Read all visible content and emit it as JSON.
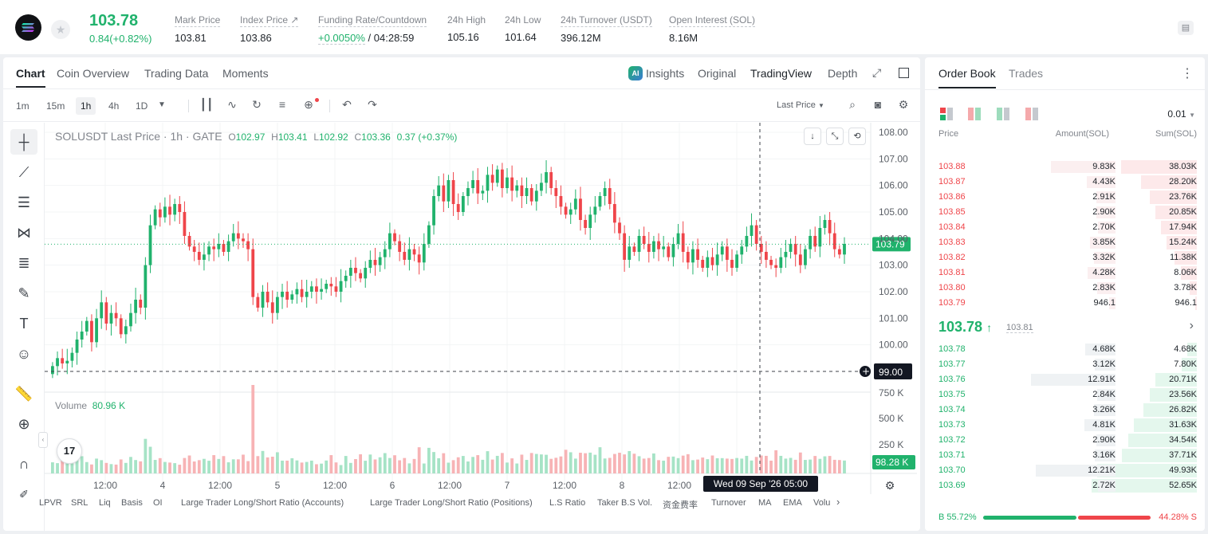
{
  "header": {
    "price": "103.78",
    "change": "0.84(+0.82%)",
    "stats": [
      {
        "label": "Mark Price",
        "value": "103.81"
      },
      {
        "label": "Index Price ↗",
        "value": "103.86"
      },
      {
        "label": "Funding Rate/Countdown",
        "value_rate": "+0.0050%",
        "value_count": "/ 04:28:59"
      },
      {
        "label": "24h High",
        "value": "105.16"
      },
      {
        "label": "24h Low",
        "value": "101.64"
      },
      {
        "label": "24h Turnover (USDT)",
        "value": "396.12M"
      },
      {
        "label": "Open Interest (SOL)",
        "value": "8.16M"
      }
    ]
  },
  "chart_tabs": [
    "Chart",
    "Coin Overview",
    "Trading Data",
    "Moments"
  ],
  "view_tabs": {
    "insights": "Insights",
    "original": "Original",
    "tradingview": "TradingView",
    "depth": "Depth",
    "ai_badge": "AI"
  },
  "intervals": [
    "1m",
    "15m",
    "1h",
    "4h",
    "1D"
  ],
  "price_type": "Last Price",
  "legend": {
    "symbol": "SOLUSDT Last Price · 1h · GATE",
    "o": "O",
    "ov": "102.97",
    "h": "H",
    "hv": "103.41",
    "l": "L",
    "lv": "102.92",
    "c": "C",
    "cv": "103.36",
    "chg": "0.37 (+0.37%)"
  },
  "volume_legend": {
    "label": "Volume",
    "value": "80.96 K"
  },
  "price_axis": [
    "108.00",
    "107.00",
    "106.00",
    "105.00",
    "104.00",
    "103.00",
    "102.00",
    "101.00",
    "100.00"
  ],
  "volume_axis": [
    "750 K",
    "500 K",
    "250 K"
  ],
  "current_price_tag": "103.79",
  "crosshair_price_tag": "99.00",
  "volume_tag": "98.28 K",
  "time_axis": [
    "12:00",
    "4",
    "12:00",
    "5",
    "12:00",
    "6",
    "12:00",
    "7",
    "12:00",
    "8",
    "12:00",
    "10"
  ],
  "crosshair_time": "Wed 09 Sep '26   05:00",
  "indicators": [
    "LPVR",
    "SRL",
    "Liq",
    "Basis",
    "OI",
    "Large Trader Long/Short Ratio (Accounts)",
    "Large Trader Long/Short Ratio (Positions)",
    "L.S Ratio",
    "Taker B.S Vol.",
    "资金费率",
    "Turnover",
    "MA",
    "EMA",
    "Volu"
  ],
  "tv_logo": "17",
  "chart_data": {
    "type": "candlestick",
    "title": "SOLUSDT Last Price · 1h · GATE",
    "ylim": [
      99.0,
      108.3
    ],
    "current_price": 103.79,
    "ohlc_close": [
      99.2,
      99.5,
      99.3,
      99.4,
      99.7,
      100.2,
      100.5,
      100.9,
      100.1,
      101.0,
      101.6,
      100.8,
      101.2,
      101.0,
      100.4,
      100.7,
      101.2,
      101.7,
      101.4,
      103.0,
      104.5,
      105.1,
      104.8,
      105.2,
      104.9,
      105.3,
      105.0,
      104.1,
      103.7,
      103.5,
      103.2,
      103.4,
      103.7,
      103.6,
      103.8,
      103.5,
      103.9,
      104.2,
      104.0,
      103.9,
      103.6,
      101.8,
      101.4,
      102.0,
      101.6,
      101.2,
      101.8,
      102.0,
      101.7,
      101.9,
      102.1,
      101.8,
      102.0,
      102.2,
      102.0,
      102.1,
      102.3,
      102.2,
      102.0,
      102.4,
      102.6,
      102.9,
      102.7,
      102.5,
      102.9,
      103.2,
      103.0,
      103.3,
      103.6,
      104.2,
      103.9,
      103.5,
      103.2,
      103.6,
      103.4,
      103.1,
      103.8,
      104.5,
      105.6,
      106.0,
      105.4,
      106.2,
      105.3,
      105.0,
      105.6,
      105.9,
      106.2,
      105.7,
      105.8,
      106.4,
      106.1,
      106.6,
      105.9,
      106.3,
      105.8,
      106.0,
      105.6,
      105.9,
      105.4,
      105.8,
      106.1,
      106.5,
      105.9,
      105.6,
      105.2,
      104.9,
      105.1,
      105.5,
      104.7,
      104.4,
      104.9,
      105.2,
      105.6,
      105.9,
      105.3,
      104.6,
      104.2,
      103.2,
      103.7,
      103.5,
      104.1,
      103.8,
      103.5,
      103.9,
      103.6,
      103.7,
      103.3,
      103.8,
      104.2,
      103.5,
      103.1,
      103.6,
      103.2,
      102.9,
      103.3,
      103.0,
      103.4,
      103.7,
      103.2,
      102.9,
      103.4,
      103.7,
      104.1,
      104.5,
      103.8,
      103.5,
      103.2,
      103.0,
      102.9,
      103.3,
      103.5,
      103.8,
      103.4,
      103.0,
      103.6,
      104.1,
      103.7,
      104.4,
      104.7,
      104.2,
      103.6,
      103.4,
      103.8
    ],
    "volume_k": [
      93.0,
      86.0,
      125.0,
      118.0,
      84.0,
      133.0,
      144.0,
      95.0,
      75.0,
      124.0,
      111.0,
      88.0,
      78.0,
      74.0,
      117.0,
      88.0,
      138.0,
      112.0,
      101.0,
      289.0,
      223.0,
      113.0,
      128.0,
      96.0,
      91.0,
      86.0,
      73.0,
      129.0,
      150.0,
      100.0,
      111.0,
      122.0,
      106.0,
      153.0,
      121.0,
      145.0,
      93.0,
      118.0,
      118.0,
      157.0,
      103.0,
      740.0,
      145.0,
      188.0,
      134.0,
      140.0,
      177.0,
      107.0,
      107.0,
      127.0,
      109.0,
      91.0,
      96.0,
      107.0,
      77.0,
      82.0,
      108.0,
      153.0,
      92.0,
      70.0,
      146.0,
      88.0,
      120.0,
      160.0,
      106.0,
      158.0,
      117.0,
      135.0,
      170.0,
      129.0,
      152.0,
      110.0,
      129.0,
      84.0,
      121.0,
      219.0,
      83.0,
      214.0,
      179.0,
      127.0,
      169.0,
      90.0,
      111.0,
      135.0,
      146.0,
      100.0,
      138.0,
      153.0,
      114.0,
      186.0,
      116.0,
      147.0,
      171.0,
      91.0,
      126.0,
      83.0,
      157.0,
      113.0,
      171.0,
      163.0,
      159.0,
      156.0,
      122.0,
      131.0,
      142.0,
      198.0,
      177.0,
      124.0,
      173.0,
      169.0,
      174.0,
      156.0,
      219.0,
      125.0,
      130.0,
      163.0,
      173.0,
      159.0,
      187.0,
      165.0,
      144.0,
      124.0,
      129.0,
      167.0,
      111.0,
      107.0,
      139.0,
      141.0,
      128.0,
      149.0,
      161.0,
      111.0,
      116.0,
      133.0,
      119.0,
      150.0,
      127.0,
      128.0,
      124.0,
      121.0,
      129.0,
      124.0,
      147.0,
      108.0,
      138.0,
      150.0,
      147.0,
      107.0,
      194.0,
      147.0,
      124.0,
      130.0,
      114.0,
      175.0,
      113.0,
      116.0,
      146.0,
      122.0,
      143.0,
      146.0,
      114.0,
      112.0,
      108.0,
      100.0,
      99.0
    ]
  },
  "orderbook": {
    "tabs": [
      "Order Book",
      "Trades"
    ],
    "precision": "0.01",
    "headers": [
      "Price",
      "Amount(SOL)",
      "Sum(SOL)"
    ],
    "asks": [
      {
        "p": "103.88",
        "a": "9.83K",
        "s": "38.03K"
      },
      {
        "p": "103.87",
        "a": "4.43K",
        "s": "28.20K"
      },
      {
        "p": "103.86",
        "a": "2.91K",
        "s": "23.76K"
      },
      {
        "p": "103.85",
        "a": "2.90K",
        "s": "20.85K"
      },
      {
        "p": "103.84",
        "a": "2.70K",
        "s": "17.94K"
      },
      {
        "p": "103.83",
        "a": "3.85K",
        "s": "15.24K"
      },
      {
        "p": "103.82",
        "a": "3.32K",
        "s": "11.38K"
      },
      {
        "p": "103.81",
        "a": "4.28K",
        "s": "8.06K"
      },
      {
        "p": "103.80",
        "a": "2.83K",
        "s": "3.78K"
      },
      {
        "p": "103.79",
        "a": "946.1",
        "s": "946.1"
      }
    ],
    "last": "103.78",
    "mark": "103.81",
    "bids": [
      {
        "p": "103.78",
        "a": "4.68K",
        "s": "4.68K"
      },
      {
        "p": "103.77",
        "a": "3.12K",
        "s": "7.80K"
      },
      {
        "p": "103.76",
        "a": "12.91K",
        "s": "20.71K"
      },
      {
        "p": "103.75",
        "a": "2.84K",
        "s": "23.56K"
      },
      {
        "p": "103.74",
        "a": "3.26K",
        "s": "26.82K"
      },
      {
        "p": "103.73",
        "a": "4.81K",
        "s": "31.63K"
      },
      {
        "p": "103.72",
        "a": "2.90K",
        "s": "34.54K"
      },
      {
        "p": "103.71",
        "a": "3.16K",
        "s": "37.71K"
      },
      {
        "p": "103.70",
        "a": "12.21K",
        "s": "49.93K"
      },
      {
        "p": "103.69",
        "a": "2.72K",
        "s": "52.65K"
      }
    ],
    "buy_pct": "B 55.72%",
    "sell_pct": "44.28% S",
    "buy_ratio": 0.5572
  },
  "colors": {
    "up": "#20b26c",
    "down": "#ef454a"
  }
}
